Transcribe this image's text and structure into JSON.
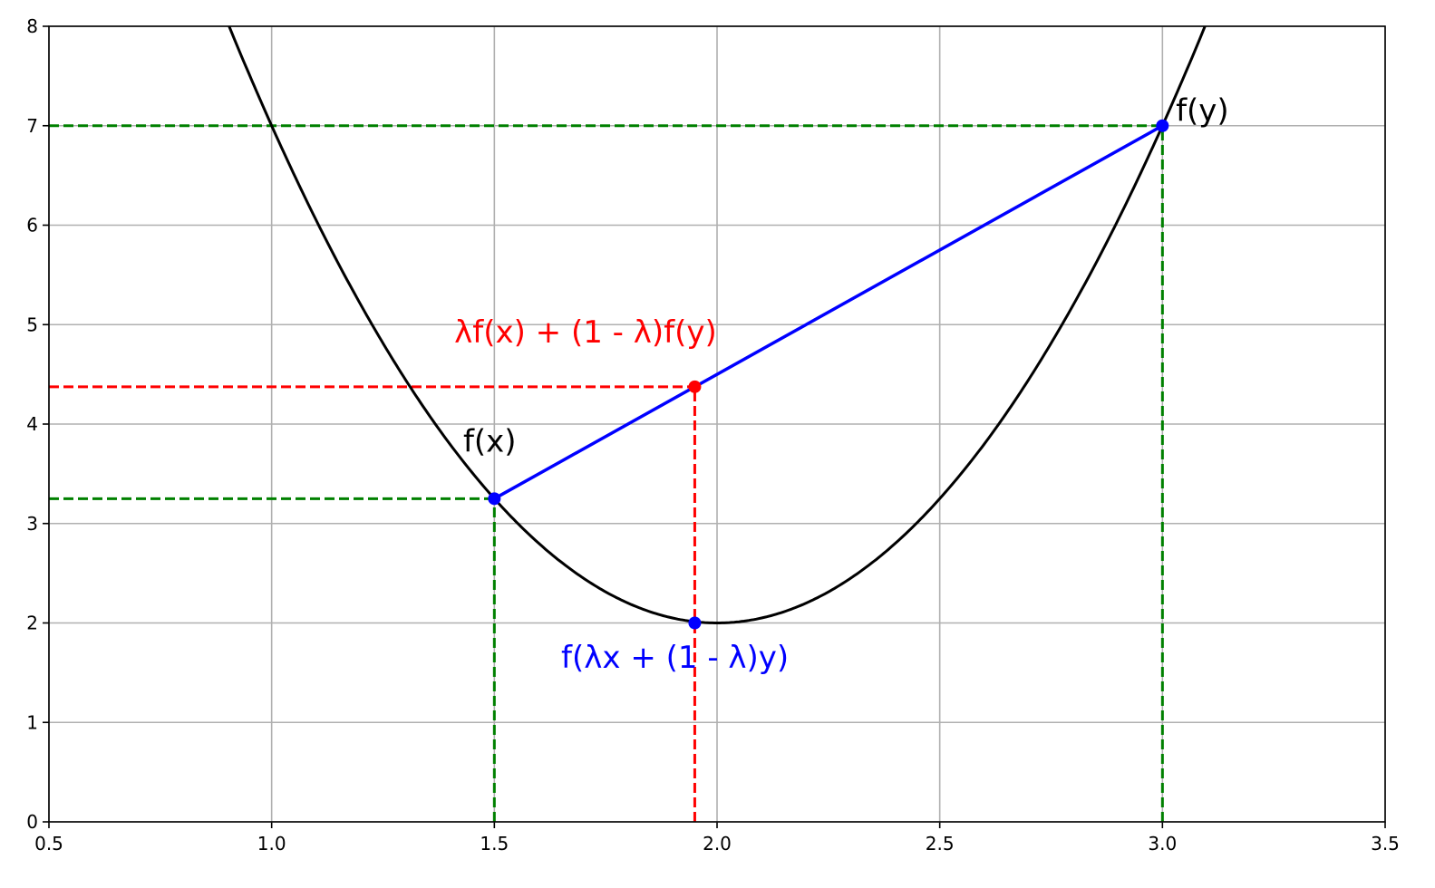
{
  "chart_data": {
    "type": "line",
    "title": "",
    "xlabel": "",
    "ylabel": "",
    "xlim": [
      0.5,
      3.5
    ],
    "ylim": [
      0,
      8
    ],
    "grid": true,
    "xticks": [
      "0.5",
      "1.0",
      "1.5",
      "2.0",
      "2.5",
      "3.0",
      "3.5"
    ],
    "yticks": [
      "0",
      "1",
      "2",
      "3",
      "4",
      "5",
      "6",
      "7",
      "8"
    ],
    "curve": {
      "function": "5(x-2)^2 + 2",
      "color": "#000000",
      "x_range": [
        0.9,
        3.1
      ]
    },
    "chord": {
      "points": [
        [
          1.5,
          3.25
        ],
        [
          3.0,
          7.0
        ]
      ],
      "color": "#0000ff"
    },
    "points": [
      {
        "x": 1.5,
        "y": 3.25,
        "color": "#0000ff"
      },
      {
        "x": 3.0,
        "y": 7.0,
        "color": "#0000ff"
      },
      {
        "x": 1.95,
        "y": 4.375,
        "color": "#ff0000"
      },
      {
        "x": 1.95,
        "y": 2.0,
        "color": "#0000ff"
      }
    ],
    "guides": [
      {
        "from": [
          0.5,
          7.0
        ],
        "to": [
          3.0,
          7.0
        ],
        "color": "#008000"
      },
      {
        "from": [
          0.5,
          3.25
        ],
        "to": [
          1.5,
          3.25
        ],
        "color": "#008000"
      },
      {
        "from": [
          1.5,
          0
        ],
        "to": [
          1.5,
          3.25
        ],
        "color": "#008000"
      },
      {
        "from": [
          3.0,
          0
        ],
        "to": [
          3.0,
          7.0
        ],
        "color": "#008000"
      },
      {
        "from": [
          0.5,
          4.375
        ],
        "to": [
          1.95,
          4.375
        ],
        "color": "#ff0000"
      },
      {
        "from": [
          1.95,
          0
        ],
        "to": [
          1.95,
          4.375
        ],
        "color": "#ff0000"
      }
    ],
    "annotations": [
      {
        "text": "f(x)",
        "x": 1.43,
        "y": 3.72,
        "color": "#000000"
      },
      {
        "text": "f(y)",
        "x": 3.03,
        "y": 7.05,
        "color": "#000000"
      },
      {
        "text": "λf(x) + (1 - λ)f(y)",
        "x": 1.41,
        "y": 4.82,
        "color": "#ff0000"
      },
      {
        "text": "f(λx + (1 - λ)y)",
        "x": 1.65,
        "y": 1.55,
        "color": "#0000ff"
      }
    ]
  }
}
